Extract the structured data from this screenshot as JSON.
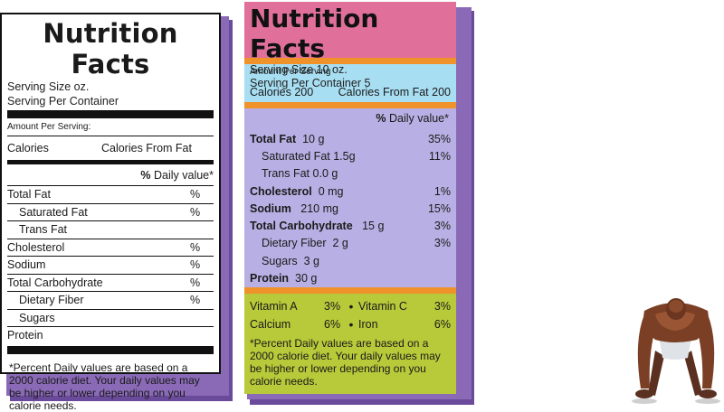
{
  "left_label": {
    "title": "Nutrition Facts",
    "serving_size": "Serving Size oz.",
    "serving_per_container": "Serving Per Container",
    "amount_per_serving": "Amount Per Serving:",
    "calories": "Calories",
    "calories_from_fat": "Calories From Fat",
    "pct_symbol": "%",
    "daily_value": "Daily value*",
    "nutrients": [
      {
        "name": "Total Fat",
        "pct": "%"
      },
      {
        "name": "Saturated Fat",
        "pct": "%"
      },
      {
        "name": "Trans Fat",
        "pct": ""
      },
      {
        "name": "Cholesterol",
        "pct": "%"
      },
      {
        "name": "Sodium",
        "pct": "%"
      },
      {
        "name": "Total Carbohydrate",
        "pct": "%"
      },
      {
        "name": "Dietary Fiber",
        "pct": "%"
      },
      {
        "name": "Sugars",
        "pct": ""
      },
      {
        "name": "Protein",
        "pct": ""
      }
    ],
    "footnote": "*Percent Daily values are based on a 2000 calorie diet. Your daily values may be higher or lower depending on you calorie needs."
  },
  "right_label": {
    "title": "Nutrition Facts",
    "serving_size": "Serving Size 10 oz.",
    "serving_per_container": "Serving Per Container 5",
    "amount_per_serving": "Amount Per Serving",
    "calories": "Calories 200",
    "calories_from_fat": "Calories From Fat 200",
    "pct_symbol": "%",
    "daily_value": "Daily value*",
    "nutrients": [
      {
        "name": "Total Fat",
        "amount": "10 g",
        "pct": "35%"
      },
      {
        "name": "Saturated Fat",
        "amount": "1.5g",
        "pct": "11%"
      },
      {
        "name": "Trans Fat",
        "amount": "0.0 g",
        "pct": ""
      },
      {
        "name": "Cholesterol",
        "amount": "0 mg",
        "pct": "1%"
      },
      {
        "name": "Sodium",
        "amount": "210 mg",
        "pct": "15%"
      },
      {
        "name": "Total Carbohydrate",
        "amount": "15 g",
        "pct": "3%"
      },
      {
        "name": "Dietary Fiber",
        "amount": "2 g",
        "pct": "3%"
      },
      {
        "name": "Sugars",
        "amount": "3 g",
        "pct": ""
      },
      {
        "name": "Protein",
        "amount": "30 g",
        "pct": ""
      }
    ],
    "vitamins": [
      {
        "name1": "Vitamin A",
        "pct1": "3%",
        "name2": "Vitamin C",
        "pct2": "3%"
      },
      {
        "name1": "Calcium",
        "pct1": "6%",
        "name2": "Iron",
        "pct2": "6%"
      }
    ],
    "bullet": "•",
    "footnote": "*Percent Daily values are based on a 2000 calorie diet. Your daily values may be higher or lower depending on you calorie needs."
  },
  "colors": {
    "pink": "#e0709a",
    "orange": "#f0922a",
    "cyan": "#a8def2",
    "lavender": "#b8b0e4",
    "green": "#b8c93a",
    "shadow_purple": "#6a4a9a"
  },
  "illustration": "athlete-pushup"
}
